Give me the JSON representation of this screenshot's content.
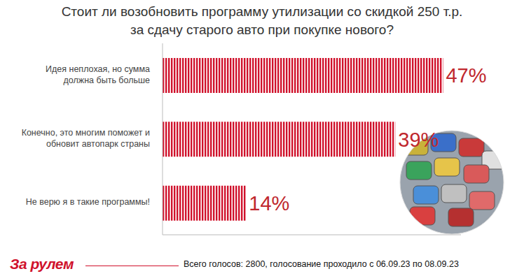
{
  "chart_data": {
    "type": "bar",
    "orientation": "horizontal",
    "title": "Стоит ли возобновить программу утилизации со скидкой 250 т.р.\nза сдачу старого авто при покупке нового?",
    "categories": [
      "Идея неплохая, но сумма\nдолжна быть больше",
      "Конечно, это многим поможет и\nобновит автопарк страны",
      "Не верю я в такие программы!"
    ],
    "values": [
      47,
      39,
      14
    ],
    "value_labels": [
      "47%",
      "39%",
      "14%"
    ],
    "data_labels": true,
    "color": "#d0112b",
    "xlim": [
      0,
      50
    ],
    "xticks": [
      0,
      50
    ],
    "tick_labels": false,
    "grid": false
  },
  "footer": {
    "logo": "За рулем",
    "note": "Всего голосов: 2800, голосование проходило с 06.09.23 по 08.09.23"
  }
}
